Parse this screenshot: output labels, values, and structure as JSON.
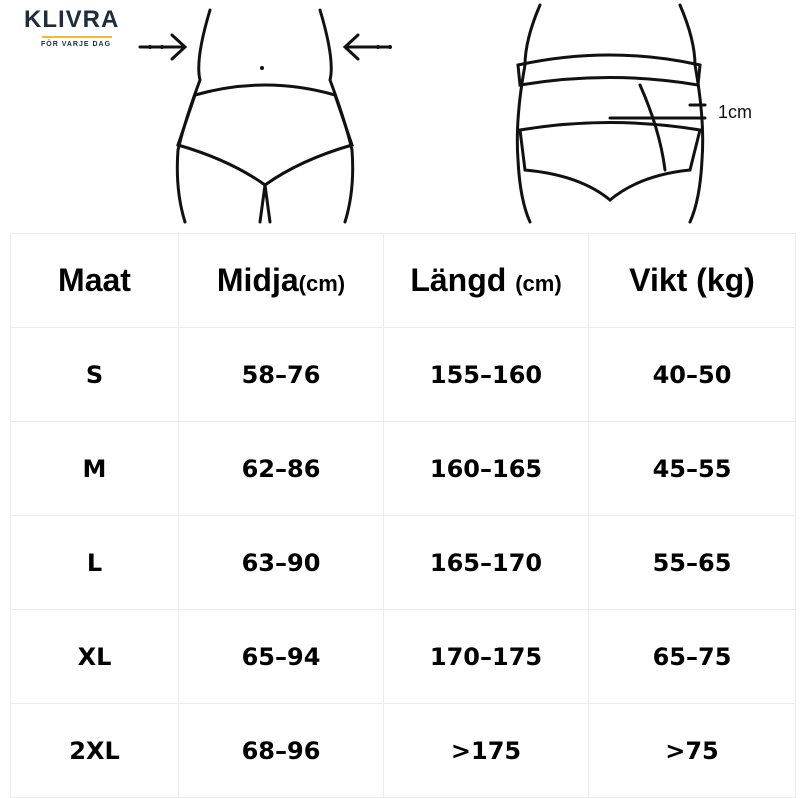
{
  "logo": {
    "name": "KLIVRA",
    "tagline": "FÖR VARJE DAG",
    "accent": "#f5b82e",
    "color": "#1e2d3b"
  },
  "figure": {
    "measure_label": "1cm"
  },
  "table": {
    "headers": [
      {
        "label": "Maat",
        "unit": ""
      },
      {
        "label": "Midja",
        "unit": "(cm)"
      },
      {
        "label": "Längd ",
        "unit": "(cm)"
      },
      {
        "label": "Vikt (kg)",
        "unit": ""
      }
    ],
    "rows": [
      [
        "S",
        "58–76",
        "155–160",
        "40–50"
      ],
      [
        "M",
        "62–86",
        "160–165",
        "45–55"
      ],
      [
        "L",
        "63–90",
        "165–170",
        "55–65"
      ],
      [
        "XL",
        "65–94",
        "170–175",
        "65–75"
      ],
      [
        "2XL",
        "68–96",
        ">175",
        ">75"
      ]
    ]
  }
}
